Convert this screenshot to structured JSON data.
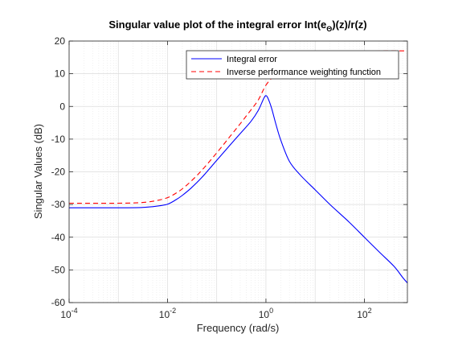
{
  "chart_data": {
    "type": "line",
    "title": "Singular value plot of the integral error Int(e",
    "title_sub": "Θ",
    "title_suffix": ")(z)/r(z)",
    "xlabel": "Frequency (rad/s)",
    "ylabel": "Singular Values (dB)",
    "xscale": "log",
    "xlim": [
      0.0001,
      750
    ],
    "ylim": [
      -60,
      20
    ],
    "grid": true,
    "legend_position": "top-right",
    "x_ticks": [
      {
        "value": 0.0001,
        "base": "10",
        "exp": "-4"
      },
      {
        "value": 0.01,
        "base": "10",
        "exp": "-2"
      },
      {
        "value": 1,
        "base": "10",
        "exp": "0"
      },
      {
        "value": 100,
        "base": "10",
        "exp": "2"
      }
    ],
    "y_ticks": [
      {
        "value": 20,
        "label": "20"
      },
      {
        "value": 10,
        "label": "10"
      },
      {
        "value": 0,
        "label": "0"
      },
      {
        "value": -10,
        "label": "-10"
      },
      {
        "value": -20,
        "label": "-20"
      },
      {
        "value": -30,
        "label": "-30"
      },
      {
        "value": -40,
        "label": "-40"
      },
      {
        "value": -50,
        "label": "-50"
      },
      {
        "value": -60,
        "label": "-60"
      }
    ],
    "series": [
      {
        "name": "Integral error",
        "color": "#0000ff",
        "style": "solid",
        "x": [
          0.0001,
          0.001,
          0.003,
          0.006,
          0.01,
          0.015,
          0.02,
          0.03,
          0.05,
          0.1,
          0.2,
          0.3,
          0.5,
          0.7,
          0.9,
          1.0,
          1.1,
          1.3,
          1.6,
          2.0,
          3.0,
          5.0,
          10,
          20,
          50,
          100,
          200,
          400,
          600,
          750
        ],
        "y": [
          -31,
          -31,
          -30.9,
          -30.5,
          -29.9,
          -28.5,
          -27.2,
          -25,
          -21.7,
          -16.5,
          -11.3,
          -8.3,
          -4.5,
          -1.2,
          2.4,
          3.3,
          2.5,
          -0.5,
          -5.5,
          -10.3,
          -16.8,
          -21,
          -25.5,
          -30,
          -35.5,
          -40,
          -44.5,
          -48.9,
          -52.3,
          -54
        ]
      },
      {
        "name": "Inverse performance weighting function",
        "color": "#ff0000",
        "style": "dashed",
        "x": [
          0.0001,
          0.001,
          0.003,
          0.006,
          0.01,
          0.015,
          0.02,
          0.03,
          0.05,
          0.1,
          0.2,
          0.3,
          0.5,
          0.7,
          1.0,
          1.5,
          2.0,
          3.0,
          10,
          30,
          100,
          300,
          750
        ],
        "y": [
          -29.6,
          -29.6,
          -29.4,
          -28.8,
          -27.9,
          -26.5,
          -25.2,
          -22.9,
          -19.5,
          -14.2,
          -8.6,
          -5.3,
          -1,
          2,
          6.5,
          9.6,
          11.3,
          13.2,
          15.8,
          16.5,
          16.8,
          17,
          17
        ]
      }
    ]
  }
}
